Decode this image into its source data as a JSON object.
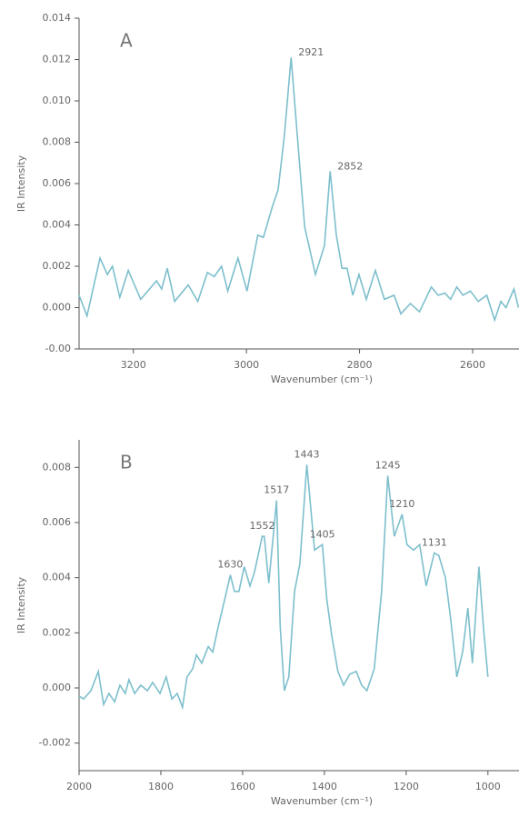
{
  "chart_data": [
    {
      "type": "line",
      "panel_label": "A",
      "y_label": "IR Intensity",
      "x_label": "Wavenumber (cm⁻¹)",
      "xlim": [
        3296,
        2518
      ],
      "xticks": [
        3200,
        3000,
        2800,
        2600
      ],
      "ylim": [
        -0.002,
        0.014
      ],
      "yticks": [
        {
          "value": -0.002,
          "label": "-0.00"
        },
        {
          "value": 0,
          "label": "0.000"
        },
        0.002,
        0.004,
        0.006,
        0.008,
        {
          "value": 0.01,
          "label": "0.010"
        },
        0.012,
        0.014
      ],
      "x": [
        3296,
        3282,
        3259,
        3246,
        3237,
        3224,
        3209,
        3187,
        3159,
        3150,
        3140,
        3127,
        3103,
        3086,
        3069,
        3057,
        3044,
        3033,
        3015,
        2999,
        2980,
        2970,
        2954,
        2944,
        2933,
        2921,
        2910,
        2897,
        2878,
        2862,
        2852,
        2841,
        2831,
        2822,
        2812,
        2801,
        2788,
        2772,
        2756,
        2739,
        2727,
        2710,
        2694,
        2673,
        2661,
        2649,
        2639,
        2628,
        2617,
        2604,
        2590,
        2575,
        2561,
        2550,
        2541,
        2527,
        2519
      ],
      "series": [
        {
          "color": "#7dbfcc",
          "values": [
            0.0006,
            -0.0004,
            0.0024,
            0.0016,
            0.002,
            0.0005,
            0.0018,
            0.0004,
            0.0013,
            0.0009,
            0.0019,
            0.0003,
            0.0011,
            0.0003,
            0.0017,
            0.0015,
            0.002,
            0.0008,
            0.0024,
            0.0008,
            0.0035,
            0.0034,
            0.0049,
            0.0057,
            0.0083,
            0.0121,
            0.0083,
            0.0039,
            0.0016,
            0.003,
            0.0066,
            0.0035,
            0.0019,
            0.0019,
            0.0006,
            0.0016,
            0.0004,
            0.0018,
            0.0004,
            0.0006,
            -0.0003,
            0.0002,
            -0.0002,
            0.001,
            0.0006,
            0.0007,
            0.0004,
            0.001,
            0.0006,
            0.0008,
            0.0003,
            0.0006,
            -0.0006,
            0.0003,
            0,
            0.0009,
            0
          ],
          "point_labels": [
            null,
            null,
            null,
            null,
            null,
            null,
            null,
            null,
            null,
            null,
            null,
            null,
            null,
            null,
            null,
            null,
            null,
            null,
            null,
            null,
            null,
            null,
            null,
            null,
            null,
            "2921",
            null,
            null,
            null,
            null,
            "2852",
            null,
            null,
            null,
            null,
            null,
            null,
            null,
            null,
            null,
            null,
            null,
            null,
            null,
            null,
            null,
            null,
            null,
            null,
            null,
            null,
            null,
            null,
            null,
            null,
            null,
            null
          ]
        }
      ]
    },
    {
      "type": "line",
      "panel_label": "B",
      "y_label": "IR Intensity",
      "x_label": "Wavenumber (cm⁻¹)",
      "xlim": [
        2000,
        924
      ],
      "xticks": [
        2000,
        1800,
        1600,
        1400,
        1200,
        1000
      ],
      "ylim": [
        -0.003,
        0.009
      ],
      "yticks": [
        -0.002,
        {
          "value": 0,
          "label": "0.000"
        },
        0.002,
        0.004,
        0.006,
        0.008
      ],
      "x": [
        2000,
        1989,
        1971,
        1953,
        1940,
        1927,
        1913,
        1900,
        1887,
        1878,
        1864,
        1849,
        1833,
        1820,
        1802,
        1787,
        1773,
        1760,
        1747,
        1736,
        1722,
        1713,
        1700,
        1684,
        1673,
        1660,
        1644,
        1630,
        1620,
        1609,
        1596,
        1582,
        1571,
        1552,
        1547,
        1536,
        1517,
        1508,
        1498,
        1487,
        1473,
        1460,
        1443,
        1424,
        1405,
        1394,
        1382,
        1367,
        1353,
        1338,
        1322,
        1309,
        1296,
        1278,
        1260,
        1245,
        1229,
        1210,
        1198,
        1182,
        1167,
        1151,
        1131,
        1120,
        1104,
        1091,
        1076,
        1062,
        1049,
        1038,
        1022,
        1011,
        1000
      ],
      "series": [
        {
          "color": "#7dbfcc",
          "values": [
            -0.0003,
            -0.0004,
            -0.0001,
            0.0006,
            -0.0006,
            -0.0002,
            -0.0005,
            0.0001,
            -0.0002,
            0.0003,
            -0.0002,
            0.0001,
            -0.0001,
            0.0002,
            -0.0002,
            0.0004,
            -0.0004,
            -0.0002,
            -0.0007,
            0.0004,
            0.0007,
            0.0012,
            0.0009,
            0.0015,
            0.0013,
            0.0022,
            0.0032,
            0.0041,
            0.0035,
            0.0035,
            0.0044,
            0.0037,
            0.0042,
            0.0055,
            0.0055,
            0.0038,
            0.0068,
            0.0022,
            -0.0001,
            0.0004,
            0.0035,
            0.0045,
            0.0081,
            0.005,
            0.0052,
            0.0032,
            0.0019,
            0.0006,
            0.0001,
            0.0005,
            0.0006,
            0.0001,
            -0.0001,
            0.0007,
            0.0035,
            0.0077,
            0.0055,
            0.0063,
            0.0052,
            0.005,
            0.0052,
            0.0037,
            0.0049,
            0.0048,
            0.004,
            0.0025,
            0.0004,
            0.0013,
            0.0029,
            0.0009,
            0.0044,
            0.0022,
            0.0004
          ],
          "point_labels": [
            null,
            null,
            null,
            null,
            null,
            null,
            null,
            null,
            null,
            null,
            null,
            null,
            null,
            null,
            null,
            null,
            null,
            null,
            null,
            null,
            null,
            null,
            null,
            null,
            null,
            null,
            null,
            "1630",
            null,
            null,
            null,
            null,
            null,
            "1552",
            null,
            null,
            "1517",
            null,
            null,
            null,
            null,
            null,
            "1443",
            null,
            "1405",
            null,
            null,
            null,
            null,
            null,
            null,
            null,
            null,
            null,
            null,
            "1245",
            null,
            "1210",
            null,
            null,
            null,
            null,
            "1131",
            null,
            null,
            null,
            null,
            null,
            null,
            null,
            null,
            null,
            null
          ]
        }
      ]
    }
  ]
}
